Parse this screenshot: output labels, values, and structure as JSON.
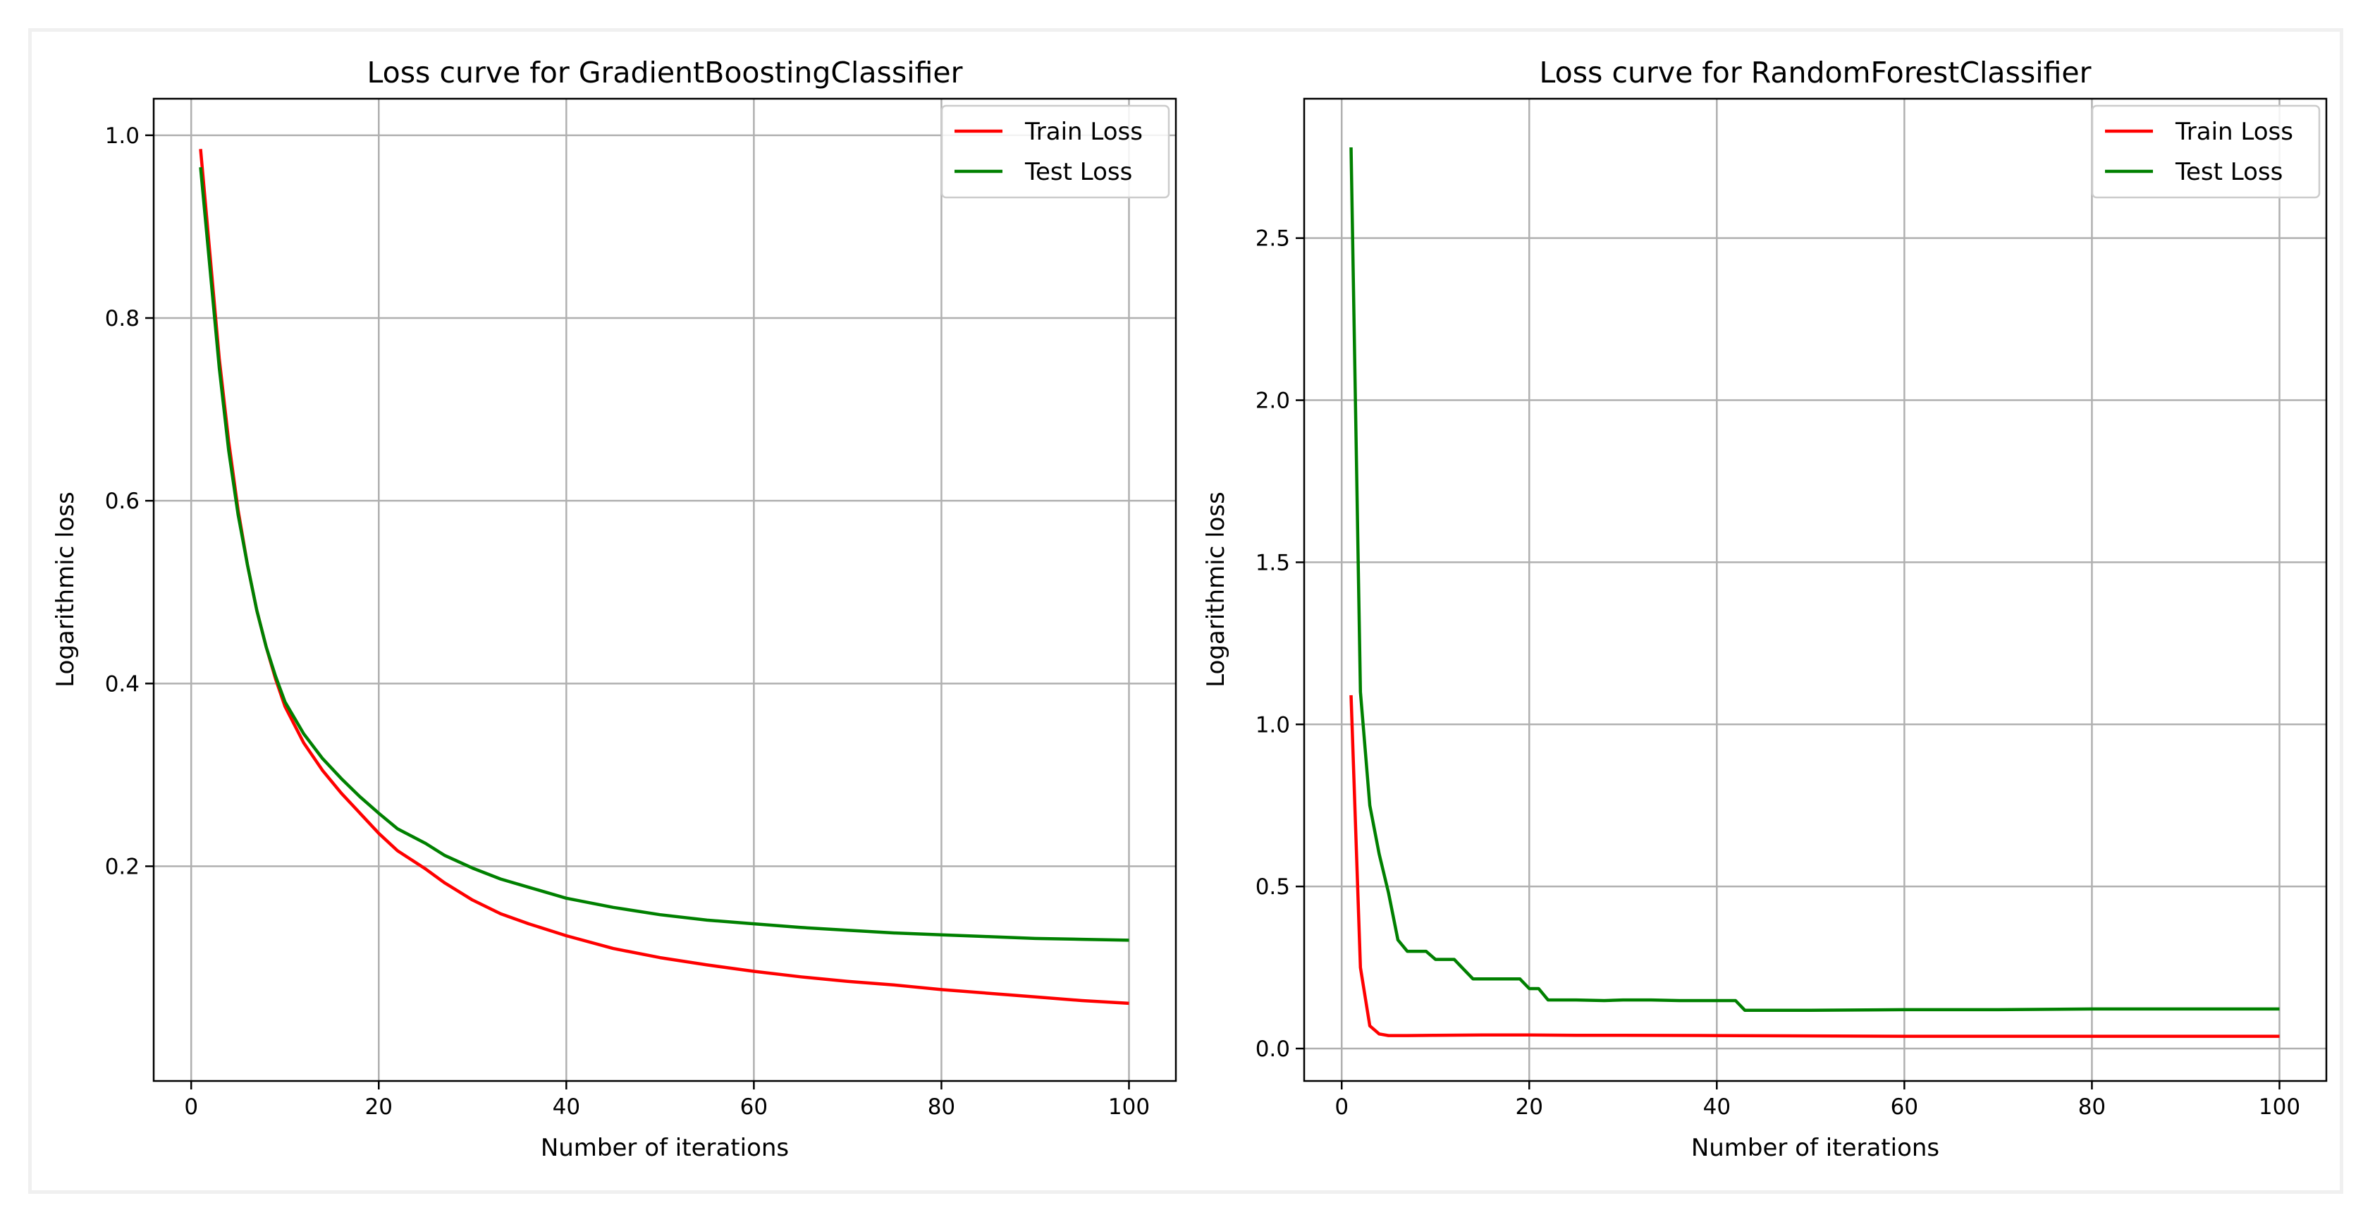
{
  "chart_data": [
    {
      "type": "line",
      "title": "Loss curve for GradientBoostingClassifier",
      "xlabel": "Number of iterations",
      "ylabel": "Logarithmic loss",
      "xlim": [
        -4,
        105
      ],
      "ylim": [
        -0.035,
        1.04
      ],
      "xticks": [
        0,
        20,
        40,
        60,
        80,
        100
      ],
      "xtick_labels": [
        "0",
        "20",
        "40",
        "60",
        "80",
        "100"
      ],
      "yticks": [
        0.2,
        0.4,
        0.6,
        0.8,
        1.0
      ],
      "ytick_labels": [
        "0.2",
        "0.4",
        "0.6",
        "0.8",
        "1.0"
      ],
      "grid": true,
      "legend_position": "top-right",
      "series": [
        {
          "name": "Train Loss",
          "color": "#ff0000",
          "x": [
            1,
            2,
            3,
            4,
            5,
            6,
            7,
            8,
            9,
            10,
            12,
            14,
            16,
            18,
            20,
            22,
            25,
            27,
            30,
            33,
            36,
            40,
            45,
            50,
            55,
            60,
            65,
            70,
            75,
            80,
            85,
            90,
            95,
            100
          ],
          "y": [
            0.985,
            0.87,
            0.755,
            0.665,
            0.59,
            0.53,
            0.48,
            0.44,
            0.405,
            0.375,
            0.335,
            0.305,
            0.28,
            0.258,
            0.236,
            0.217,
            0.197,
            0.182,
            0.163,
            0.148,
            0.137,
            0.124,
            0.11,
            0.1,
            0.092,
            0.085,
            0.079,
            0.074,
            0.07,
            0.065,
            0.061,
            0.057,
            0.053,
            0.05
          ]
        },
        {
          "name": "Test Loss",
          "color": "#008000",
          "x": [
            1,
            2,
            3,
            4,
            5,
            6,
            7,
            8,
            9,
            10,
            12,
            14,
            16,
            18,
            20,
            22,
            25,
            27,
            30,
            33,
            36,
            40,
            45,
            50,
            55,
            60,
            65,
            70,
            75,
            80,
            85,
            90,
            95,
            100
          ],
          "y": [
            0.965,
            0.855,
            0.745,
            0.655,
            0.585,
            0.53,
            0.48,
            0.44,
            0.408,
            0.38,
            0.345,
            0.318,
            0.296,
            0.276,
            0.258,
            0.241,
            0.225,
            0.212,
            0.198,
            0.186,
            0.177,
            0.165,
            0.155,
            0.147,
            0.141,
            0.137,
            0.133,
            0.13,
            0.127,
            0.125,
            0.123,
            0.121,
            0.12,
            0.119
          ]
        }
      ]
    },
    {
      "type": "line",
      "title": "Loss curve for RandomForestClassifier",
      "xlabel": "Number of iterations",
      "ylabel": "Logarithmic loss",
      "xlim": [
        -4,
        105
      ],
      "ylim": [
        -0.1,
        2.93
      ],
      "xticks": [
        0,
        20,
        40,
        60,
        80,
        100
      ],
      "xtick_labels": [
        "0",
        "20",
        "40",
        "60",
        "80",
        "100"
      ],
      "yticks": [
        0.0,
        0.5,
        1.0,
        1.5,
        2.0,
        2.5
      ],
      "ytick_labels": [
        "0.0",
        "0.5",
        "1.0",
        "1.5",
        "2.0",
        "2.5"
      ],
      "grid": true,
      "legend_position": "top-right",
      "series": [
        {
          "name": "Train Loss",
          "color": "#ff0000",
          "x": [
            1,
            2,
            3,
            4,
            5,
            7,
            10,
            15,
            20,
            25,
            30,
            40,
            50,
            60,
            70,
            80,
            90,
            100
          ],
          "y": [
            1.09,
            0.25,
            0.07,
            0.045,
            0.04,
            0.04,
            0.041,
            0.042,
            0.042,
            0.041,
            0.041,
            0.04,
            0.039,
            0.038,
            0.038,
            0.038,
            0.038,
            0.038
          ],
          "draw_style": "linear"
        },
        {
          "name": "Test Loss",
          "color": "#008000",
          "x": [
            1,
            2,
            3,
            4,
            5,
            6,
            7,
            8,
            9,
            10,
            11,
            12,
            13,
            14,
            15,
            16,
            17,
            18,
            19,
            20,
            21,
            22,
            25,
            28,
            30,
            33,
            36,
            40,
            42,
            43,
            50,
            60,
            70,
            80,
            90,
            100
          ],
          "y": [
            2.78,
            1.1,
            0.75,
            0.6,
            0.48,
            0.335,
            0.3,
            0.3,
            0.3,
            0.275,
            0.275,
            0.275,
            0.245,
            0.215,
            0.215,
            0.215,
            0.215,
            0.215,
            0.215,
            0.185,
            0.185,
            0.15,
            0.15,
            0.148,
            0.15,
            0.15,
            0.148,
            0.148,
            0.148,
            0.118,
            0.118,
            0.12,
            0.12,
            0.122,
            0.122,
            0.122
          ]
        }
      ]
    }
  ]
}
